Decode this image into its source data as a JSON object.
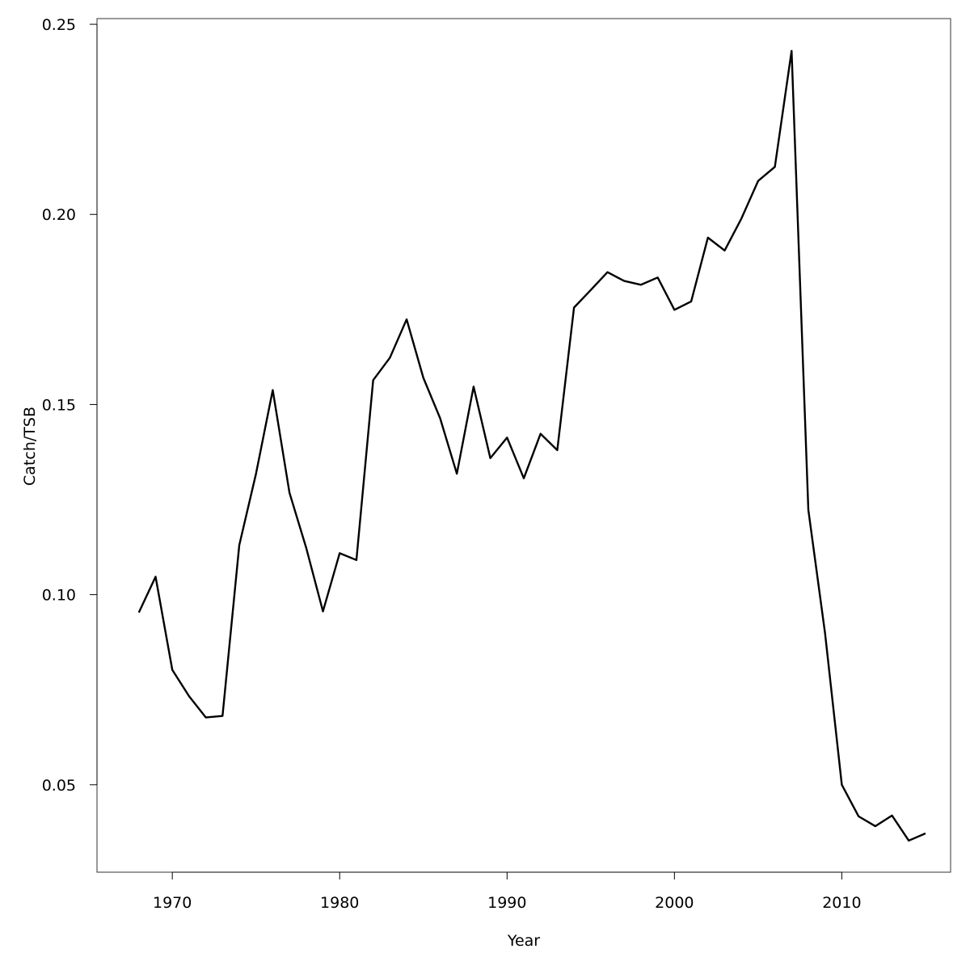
{
  "chart_data": {
    "type": "line",
    "title": "",
    "xlabel": "Year",
    "ylabel": "Catch/TSB",
    "xlim": [
      1965.5,
      2016.5
    ],
    "ylim": [
      0.027,
      0.2515
    ],
    "grid": false,
    "legend": "none",
    "x_ticks": [
      1970,
      1980,
      1990,
      2000,
      2010
    ],
    "y_ticks": [
      0.05,
      0.1,
      0.15,
      0.2,
      0.25
    ],
    "x_tick_labels": [
      "1970",
      "1980",
      "1990",
      "2000",
      "2010"
    ],
    "y_tick_labels": [
      "0.05",
      "0.10",
      "0.15",
      "0.20",
      "0.25"
    ],
    "line_color": "#000000",
    "series": [
      {
        "x": [
          1968,
          1969,
          1970,
          1971,
          1972,
          1973,
          1974,
          1975,
          1976,
          1977,
          1978,
          1979,
          1980,
          1981,
          1982,
          1983,
          1984,
          1985,
          1986,
          1987,
          1988,
          1989,
          1990,
          1991,
          1992,
          1993,
          1994,
          1995,
          1996,
          1997,
          1998,
          1999,
          2000,
          2001,
          2002,
          2003,
          2004,
          2005,
          2006,
          2007,
          2008,
          2009,
          2010,
          2011,
          2012,
          2013,
          2014,
          2015
        ],
        "values": [
          0.0953,
          0.1047,
          0.0802,
          0.0733,
          0.0677,
          0.0681,
          0.113,
          0.1318,
          0.1538,
          0.1268,
          0.1123,
          0.0956,
          0.1109,
          0.1091,
          0.1564,
          0.1623,
          0.1724,
          0.157,
          0.1464,
          0.1318,
          0.1547,
          0.1359,
          0.1413,
          0.1306,
          0.1423,
          0.138,
          0.1755,
          0.1801,
          0.1848,
          0.1825,
          0.1815,
          0.1834,
          0.1749,
          0.1771,
          0.1939,
          0.1905,
          0.1989,
          0.2088,
          0.2125,
          0.243,
          0.1223,
          0.0898,
          0.05,
          0.0417,
          0.0391,
          0.0419,
          0.0353,
          0.0372
        ]
      }
    ]
  }
}
